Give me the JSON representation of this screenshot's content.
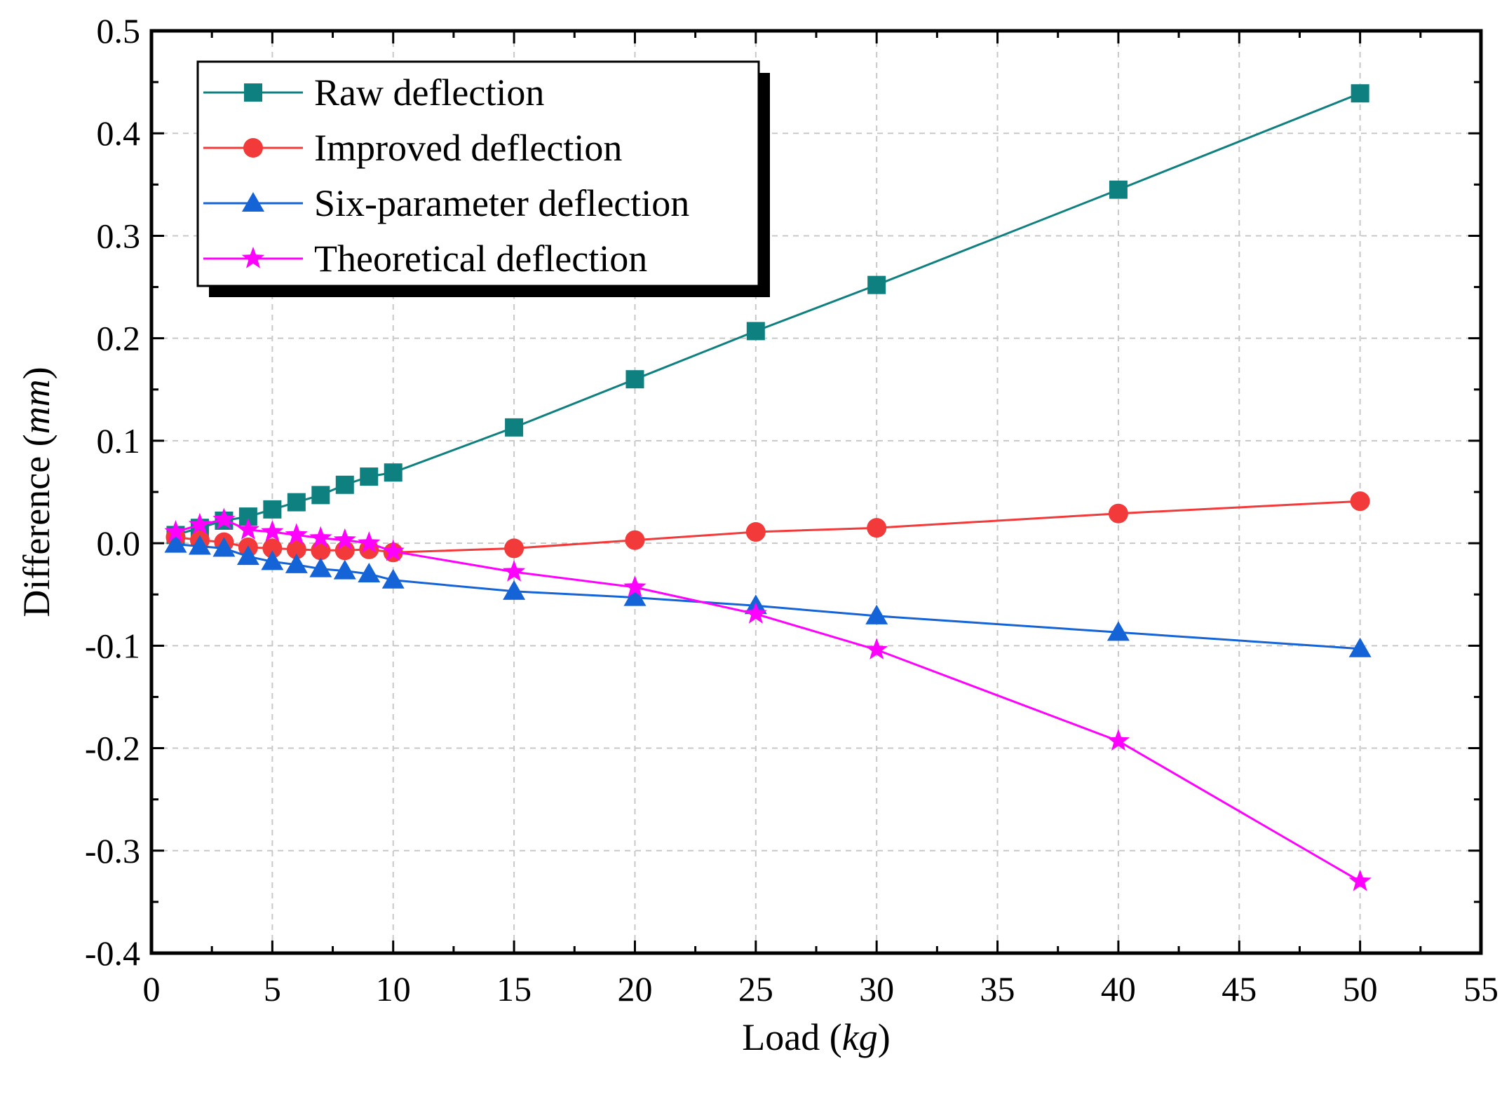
{
  "chart_data": {
    "type": "line",
    "title": "",
    "xlabel": "Load",
    "xlabel_unit": "kg",
    "ylabel": "Difference",
    "ylabel_unit": "mm",
    "xlim": [
      0,
      55
    ],
    "ylim": [
      -0.4,
      0.5
    ],
    "xticks": [
      0,
      5,
      10,
      15,
      20,
      25,
      30,
      35,
      40,
      45,
      50,
      55
    ],
    "xtick_labels": [
      "0",
      "5",
      "10",
      "15",
      "20",
      "25",
      "30",
      "35",
      "40",
      "45",
      "50",
      "55"
    ],
    "yticks": [
      -0.4,
      -0.3,
      -0.2,
      -0.1,
      0.0,
      0.1,
      0.2,
      0.3,
      0.4,
      0.5
    ],
    "ytick_labels": [
      "-0.4",
      "-0.3",
      "-0.2",
      "-0.1",
      "0.0",
      "0.1",
      "0.2",
      "0.3",
      "0.4",
      "0.5"
    ],
    "grid": true,
    "legend_position": "top-left",
    "x": [
      1,
      2,
      3,
      4,
      5,
      6,
      7,
      8,
      9,
      10,
      15,
      20,
      25,
      30,
      40,
      50
    ],
    "series": [
      {
        "name": "Raw deflection",
        "color": "#0f8080",
        "marker": "square",
        "values": [
          0.008,
          0.015,
          0.022,
          0.026,
          0.033,
          0.04,
          0.047,
          0.057,
          0.065,
          0.069,
          0.113,
          0.16,
          0.207,
          0.252,
          0.345,
          0.439
        ]
      },
      {
        "name": "Improved deflection",
        "color": "#f23a3a",
        "marker": "circle",
        "values": [
          0.006,
          0.003,
          0.001,
          -0.004,
          -0.005,
          -0.006,
          -0.007,
          -0.007,
          -0.006,
          -0.009,
          -0.005,
          0.003,
          0.011,
          0.015,
          0.029,
          0.041
        ]
      },
      {
        "name": "Six-parameter deflection",
        "color": "#1464d8",
        "marker": "triangle",
        "values": [
          -0.001,
          -0.003,
          -0.005,
          -0.013,
          -0.018,
          -0.021,
          -0.025,
          -0.027,
          -0.03,
          -0.036,
          -0.047,
          -0.053,
          -0.061,
          -0.071,
          -0.087,
          -0.103
        ]
      },
      {
        "name": "Theoretical deflection",
        "color": "#ff00ff",
        "marker": "star",
        "values": [
          0.011,
          0.018,
          0.023,
          0.013,
          0.011,
          0.008,
          0.005,
          0.003,
          0.0,
          -0.008,
          -0.028,
          -0.043,
          -0.069,
          -0.104,
          -0.193,
          -0.33
        ]
      }
    ]
  }
}
